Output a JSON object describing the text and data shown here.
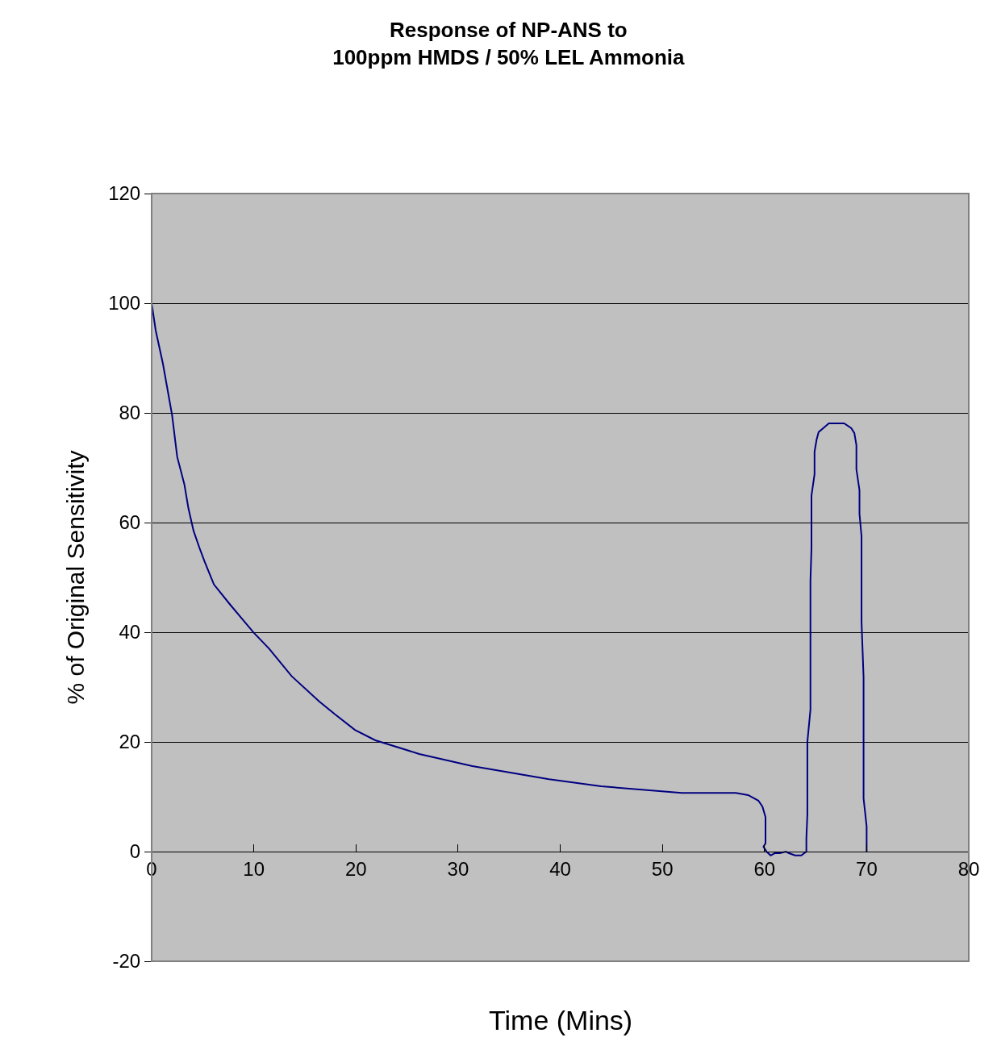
{
  "chart_data": {
    "type": "line",
    "title": "Response of NP-ANS to\n100ppm HMDS / 50% LEL Ammonia",
    "xlabel": "Time (Mins)",
    "ylabel": "% of Original Sensitivity",
    "xlim": [
      0,
      80
    ],
    "xticks": [
      0,
      10,
      20,
      30,
      40,
      50,
      60,
      70,
      80
    ],
    "ylim": [
      -20,
      120
    ],
    "yticks": [
      -20,
      0,
      20,
      40,
      60,
      80,
      100,
      120
    ],
    "grid": "y",
    "marker": "none",
    "line_style": "solid",
    "series": [
      {
        "color": "#000080",
        "x": [
          0,
          0.4,
          1.1,
          2.0,
          2.5,
          3.2,
          3.6,
          4.1,
          4.7,
          5.2,
          6.1,
          7.7,
          10,
          11.5,
          13.7,
          16.4,
          17.9,
          19.9,
          21.9,
          26.2,
          31.4,
          38.9,
          44,
          51.9,
          57.2,
          58.4,
          59.4,
          59.8,
          60.1,
          60.1,
          59.9,
          60.2,
          60.6,
          61,
          61.5,
          62.1,
          62.4,
          63,
          63.6,
          64.1,
          64.1,
          64.2,
          64.2,
          64.5,
          64.5,
          64.6,
          64.6,
          64.9,
          64.9,
          65.1,
          65.3,
          66,
          66.3,
          67.8,
          68.5,
          68.8,
          69,
          69,
          69.3,
          69.3,
          69.5,
          69.5,
          69.7,
          69.7,
          70,
          70
        ],
        "values": [
          100,
          95,
          89,
          79.6,
          72,
          67,
          62.6,
          58.5,
          55.3,
          52.8,
          48.7,
          45,
          39.9,
          37,
          32,
          27.4,
          25.1,
          22.2,
          20.3,
          17.8,
          15.6,
          13.2,
          11.9,
          10.7,
          10.7,
          10.3,
          9.3,
          8.2,
          6.3,
          1.5,
          0.9,
          0,
          -0.7,
          -0.3,
          -0.3,
          0,
          -0.3,
          -0.7,
          -0.7,
          0,
          2.4,
          6.8,
          20,
          25.9,
          49.4,
          55.3,
          64.9,
          68.8,
          72.9,
          75.1,
          76.5,
          77.6,
          78.1,
          78.1,
          77.2,
          76.3,
          74.1,
          69.7,
          65.9,
          61.6,
          57.5,
          42,
          31.8,
          9.7,
          4.6,
          0
        ]
      }
    ]
  }
}
